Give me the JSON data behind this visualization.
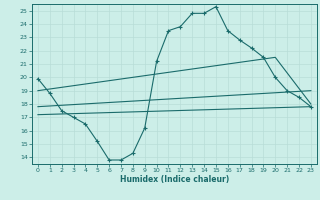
{
  "xlabel": "Humidex (Indice chaleur)",
  "bg_color": "#cceee8",
  "grid_color": "#b8ddd8",
  "line_color": "#1a6b6b",
  "xlim": [
    -0.5,
    23.5
  ],
  "ylim": [
    13.5,
    25.5
  ],
  "yticks": [
    14,
    15,
    16,
    17,
    18,
    19,
    20,
    21,
    22,
    23,
    24,
    25
  ],
  "xticks": [
    0,
    1,
    2,
    3,
    4,
    5,
    6,
    7,
    8,
    9,
    10,
    11,
    12,
    13,
    14,
    15,
    16,
    17,
    18,
    19,
    20,
    21,
    22,
    23
  ],
  "line1_x": [
    0,
    1,
    2,
    3,
    4,
    5,
    6,
    7,
    8,
    9,
    10,
    11,
    12,
    13,
    14,
    15,
    16,
    17,
    18,
    19,
    20,
    21,
    22,
    23
  ],
  "line1_y": [
    19.9,
    18.8,
    17.5,
    17.0,
    16.5,
    15.2,
    13.8,
    13.8,
    14.3,
    16.2,
    21.2,
    23.5,
    23.8,
    24.8,
    24.8,
    25.3,
    23.5,
    22.8,
    22.2,
    21.5,
    20.0,
    19.0,
    18.5,
    17.8
  ],
  "line2_x": [
    0,
    23
  ],
  "line2_y": [
    17.2,
    17.8
  ],
  "line3_x": [
    0,
    23
  ],
  "line3_y": [
    17.8,
    19.0
  ],
  "line4_x": [
    0,
    20,
    23
  ],
  "line4_y": [
    19.0,
    21.5,
    18.0
  ]
}
